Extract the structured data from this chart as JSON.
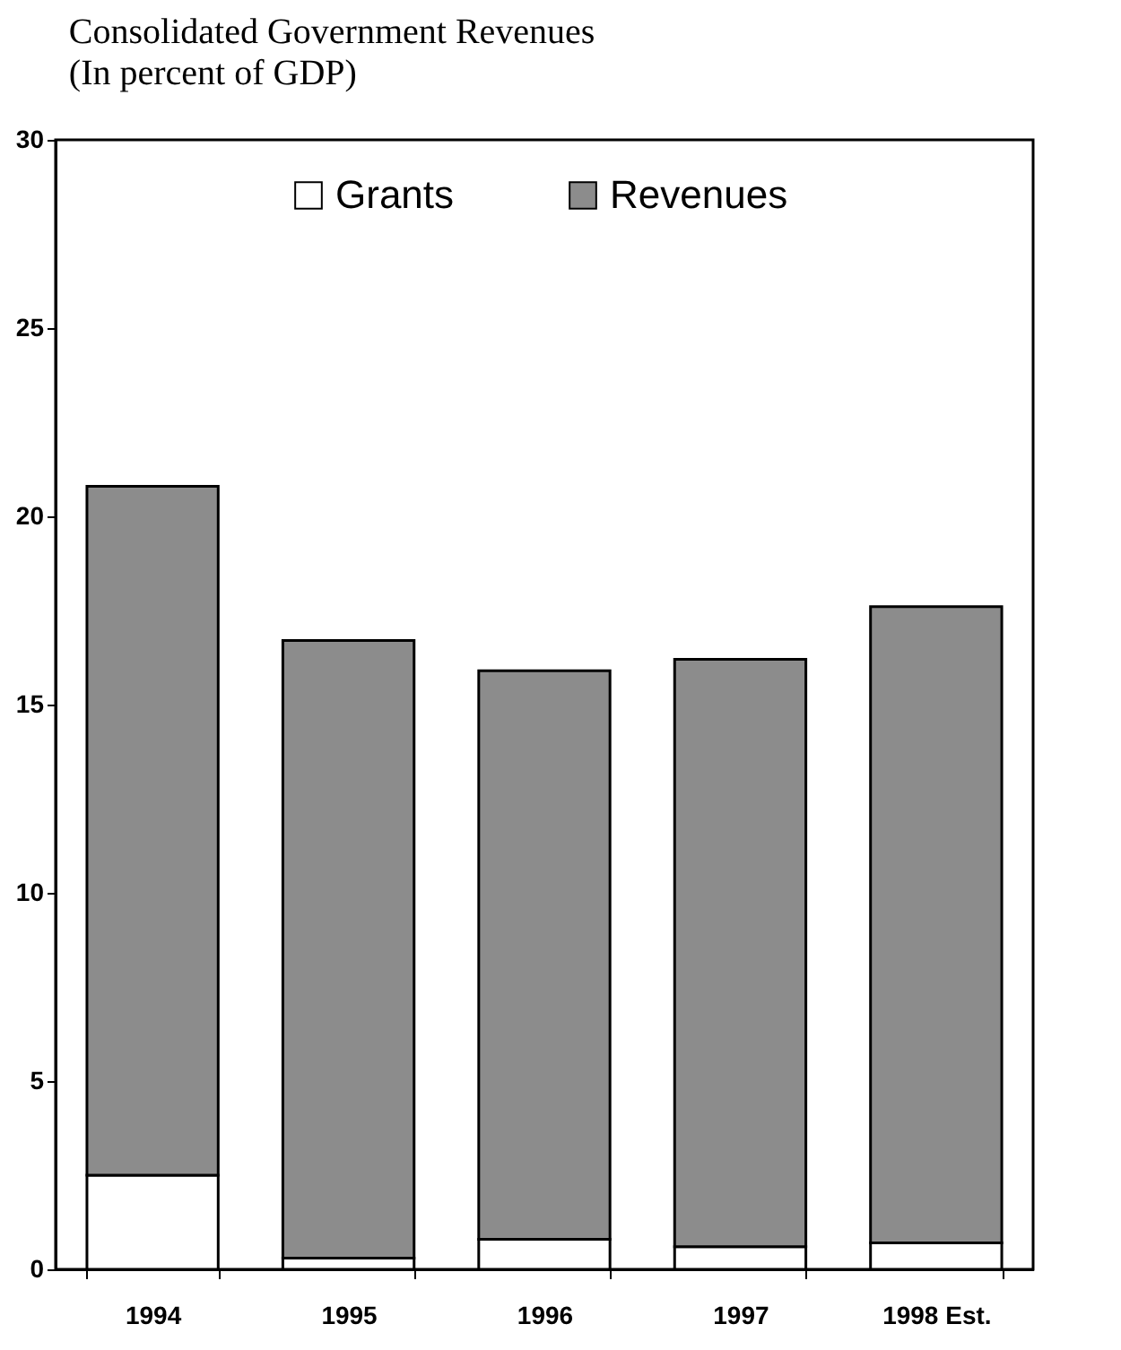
{
  "chart_data": {
    "type": "bar",
    "title": "Consolidated Government Revenues",
    "subtitle": "(In percent of GDP)",
    "categories": [
      "1994",
      "1995",
      "1996",
      "1997",
      "1998 Est."
    ],
    "stacked": true,
    "series": [
      {
        "name": "Grants",
        "color": "#ffffff",
        "values": [
          2.5,
          0.3,
          0.8,
          0.6,
          0.7
        ]
      },
      {
        "name": "Revenues",
        "color": "#8c8c8c",
        "values": [
          18.3,
          16.4,
          15.1,
          15.6,
          16.9
        ]
      }
    ],
    "ylim": [
      0,
      30
    ],
    "yticks": [
      0,
      5,
      10,
      15,
      20,
      25,
      30
    ],
    "grid": false,
    "legend": "top"
  }
}
